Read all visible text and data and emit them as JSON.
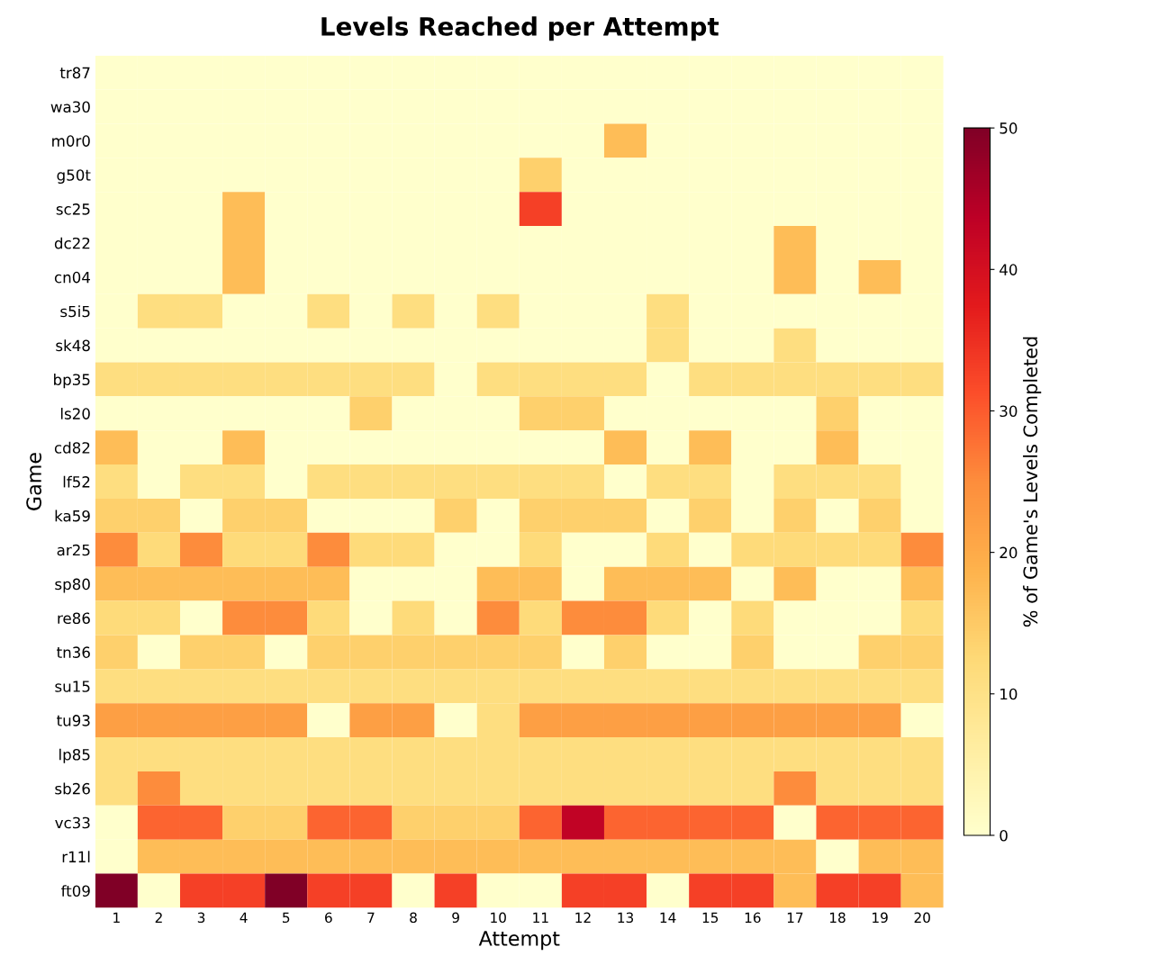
{
  "chart_data": {
    "type": "heatmap",
    "title": "Levels Reached per Attempt",
    "xlabel": "Attempt",
    "ylabel": "Game",
    "clabel": "% of Game's Levels Completed",
    "clim": [
      0,
      50
    ],
    "cticks": [
      0,
      10,
      20,
      30,
      40,
      50
    ],
    "categories": [
      "1",
      "2",
      "3",
      "4",
      "5",
      "6",
      "7",
      "8",
      "9",
      "10",
      "11",
      "12",
      "13",
      "14",
      "15",
      "16",
      "17",
      "18",
      "19",
      "20"
    ],
    "y_categories": [
      "tr87",
      "wa30",
      "m0r0",
      "g50t",
      "sc25",
      "dc22",
      "cn04",
      "s5i5",
      "sk48",
      "bp35",
      "ls20",
      "cd82",
      "lf52",
      "ka59",
      "ar25",
      "sp80",
      "re86",
      "tn36",
      "su15",
      "tu93",
      "lp85",
      "sb26",
      "vc33",
      "r11l",
      "ft09"
    ],
    "cells": [
      [
        0,
        0,
        0,
        0,
        0,
        0,
        0,
        0,
        0,
        0,
        0,
        0,
        0,
        0,
        0,
        0,
        0,
        0,
        0,
        0
      ],
      [
        0,
        0,
        0,
        0,
        0,
        0,
        0,
        0,
        0,
        0,
        0,
        0,
        0,
        0,
        0,
        0,
        0,
        0,
        0,
        0
      ],
      [
        0,
        0,
        0,
        0,
        0,
        0,
        0,
        0,
        0,
        0,
        0,
        0,
        17,
        0,
        0,
        0,
        0,
        0,
        0,
        0
      ],
      [
        0,
        0,
        0,
        0,
        0,
        0,
        0,
        0,
        0,
        0,
        14,
        0,
        0,
        0,
        0,
        0,
        0,
        0,
        0,
        0
      ],
      [
        0,
        0,
        0,
        17,
        0,
        0,
        0,
        0,
        0,
        0,
        33,
        0,
        0,
        0,
        0,
        0,
        0,
        0,
        0,
        0
      ],
      [
        0,
        0,
        0,
        17,
        0,
        0,
        0,
        0,
        0,
        0,
        0,
        0,
        0,
        0,
        0,
        0,
        17,
        0,
        0,
        0
      ],
      [
        0,
        0,
        0,
        17,
        0,
        0,
        0,
        0,
        0,
        0,
        0,
        0,
        0,
        0,
        0,
        0,
        17,
        0,
        17,
        0
      ],
      [
        0,
        11,
        11,
        0,
        0,
        11,
        0,
        11,
        0,
        11,
        0,
        0,
        0,
        11,
        0,
        0,
        0,
        0,
        0,
        0
      ],
      [
        0,
        0,
        0,
        0,
        0,
        0,
        0,
        0,
        0,
        0,
        0,
        0,
        0,
        11,
        0,
        0,
        11,
        0,
        0,
        0
      ],
      [
        11,
        11,
        11,
        11,
        11,
        11,
        11,
        11,
        0,
        11,
        11,
        11,
        11,
        0,
        11,
        11,
        11,
        11,
        11,
        11
      ],
      [
        0,
        0,
        0,
        0,
        0,
        0,
        14,
        0,
        0,
        0,
        14,
        14,
        0,
        0,
        0,
        0,
        0,
        14,
        0,
        0
      ],
      [
        17,
        0,
        0,
        17,
        0,
        0,
        0,
        0,
        0,
        0,
        0,
        0,
        17,
        0,
        17,
        0,
        0,
        17,
        0,
        0
      ],
      [
        11,
        0,
        11,
        11,
        0,
        11,
        11,
        11,
        11,
        11,
        11,
        11,
        0,
        11,
        11,
        0,
        11,
        11,
        11,
        0
      ],
      [
        14,
        14,
        0,
        14,
        14,
        0,
        0,
        0,
        14,
        0,
        14,
        14,
        14,
        0,
        14,
        0,
        14,
        0,
        14,
        0
      ],
      [
        25,
        12,
        25,
        12,
        12,
        25,
        12,
        12,
        0,
        0,
        12,
        0,
        0,
        12,
        0,
        12,
        12,
        12,
        12,
        25
      ],
      [
        17,
        17,
        17,
        17,
        17,
        17,
        0,
        0,
        0,
        17,
        17,
        0,
        17,
        17,
        17,
        0,
        17,
        0,
        0,
        17
      ],
      [
        12,
        12,
        0,
        25,
        25,
        12,
        0,
        12,
        0,
        25,
        12,
        25,
        25,
        12,
        0,
        12,
        0,
        0,
        0,
        12
      ],
      [
        14,
        0,
        14,
        14,
        0,
        14,
        14,
        14,
        14,
        14,
        14,
        0,
        14,
        0,
        0,
        14,
        0,
        0,
        14,
        14
      ],
      [
        11,
        11,
        11,
        11,
        11,
        11,
        11,
        11,
        11,
        11,
        11,
        11,
        11,
        11,
        11,
        11,
        11,
        11,
        11,
        11
      ],
      [
        22,
        22,
        22,
        22,
        22,
        0,
        22,
        22,
        0,
        11,
        22,
        22,
        22,
        22,
        22,
        22,
        22,
        22,
        22,
        0
      ],
      [
        11,
        11,
        11,
        11,
        11,
        11,
        11,
        11,
        11,
        11,
        11,
        11,
        11,
        11,
        11,
        11,
        11,
        11,
        11,
        11
      ],
      [
        11,
        25,
        11,
        11,
        11,
        11,
        11,
        11,
        11,
        11,
        11,
        11,
        11,
        11,
        11,
        11,
        25,
        11,
        11,
        11
      ],
      [
        0,
        29,
        29,
        14,
        14,
        29,
        29,
        14,
        14,
        14,
        29,
        43,
        29,
        29,
        29,
        29,
        0,
        29,
        29,
        29
      ],
      [
        0,
        17,
        17,
        17,
        17,
        17,
        17,
        17,
        17,
        17,
        17,
        17,
        17,
        17,
        17,
        17,
        17,
        0,
        17,
        17
      ],
      [
        50,
        0,
        33,
        33,
        50,
        33,
        33,
        0,
        33,
        0,
        0,
        33,
        33,
        0,
        33,
        33,
        17,
        33,
        33,
        17
      ]
    ]
  }
}
